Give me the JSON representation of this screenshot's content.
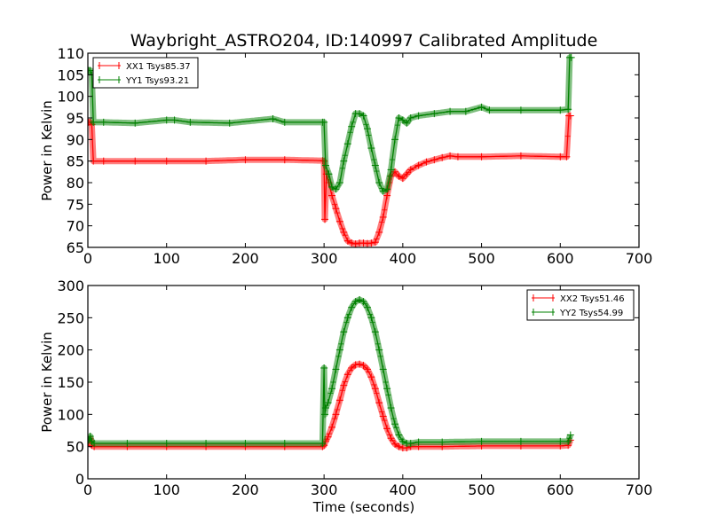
{
  "chart_data": [
    {
      "type": "line",
      "title": "Waybright_ASTRO204, ID:140997 Calibrated Amplitude",
      "xlabel": "",
      "ylabel": "Power in Kelvin",
      "xlim": [
        0,
        700
      ],
      "ylim": [
        65,
        110
      ],
      "xticks": [
        "0",
        "100",
        "200",
        "300",
        "400",
        "500",
        "600",
        "700"
      ],
      "yticks": [
        "65",
        "70",
        "75",
        "80",
        "85",
        "90",
        "95",
        "100",
        "105",
        "110"
      ],
      "grid": false,
      "legend_position": "top-left",
      "series": [
        {
          "name": "XX1 Tsys85.37",
          "color": "#ff0000",
          "x": [
            1,
            3,
            5,
            7,
            20,
            60,
            100,
            150,
            200,
            250,
            298,
            300,
            301,
            303,
            306,
            310,
            315,
            320,
            325,
            330,
            335,
            340,
            345,
            350,
            355,
            360,
            365,
            370,
            375,
            380,
            385,
            390,
            395,
            400,
            405,
            410,
            420,
            430,
            440,
            450,
            460,
            470,
            500,
            550,
            600,
            608,
            611,
            613
          ],
          "values": [
            94,
            94,
            93.5,
            85,
            85,
            85,
            85,
            85,
            85.3,
            85.3,
            85.1,
            85,
            71.5,
            82,
            80,
            77,
            74,
            71,
            68.5,
            66.5,
            66,
            65.8,
            66,
            66,
            65.9,
            66,
            66.2,
            68.5,
            72,
            77,
            81.5,
            82.5,
            81.5,
            81,
            82,
            83,
            84,
            84.8,
            85.3,
            85.8,
            86.2,
            86,
            86,
            86.2,
            86,
            86,
            95.5,
            95.5
          ]
        },
        {
          "name": "YY1 Tsys93.21",
          "color": "#008000",
          "x": [
            1,
            3,
            5,
            7,
            20,
            60,
            100,
            110,
            130,
            180,
            235,
            250,
            298,
            300,
            302,
            306,
            310,
            315,
            320,
            325,
            330,
            335,
            340,
            345,
            350,
            355,
            360,
            365,
            370,
            375,
            380,
            385,
            390,
            395,
            400,
            405,
            410,
            420,
            440,
            460,
            480,
            500,
            510,
            550,
            600,
            610,
            612,
            614
          ],
          "values": [
            106,
            106,
            105,
            94,
            94,
            93.8,
            94.5,
            94.5,
            94,
            93.8,
            94.8,
            94,
            94,
            94,
            84,
            82,
            79,
            78.5,
            80,
            85,
            89,
            93,
            96,
            96,
            95.5,
            92.5,
            88,
            84,
            80,
            78,
            78.5,
            83,
            90,
            95,
            94.5,
            93.8,
            95,
            95.5,
            96,
            96.5,
            96.5,
            97.5,
            96.8,
            96.8,
            96.8,
            97,
            109,
            109
          ]
        }
      ]
    },
    {
      "type": "line",
      "title": "",
      "xlabel": "Time (seconds)",
      "ylabel": "Power in Kelvin",
      "xlim": [
        0,
        700
      ],
      "ylim": [
        0,
        300
      ],
      "xticks": [
        "0",
        "100",
        "200",
        "300",
        "400",
        "500",
        "600",
        "700"
      ],
      "yticks": [
        "0",
        "50",
        "100",
        "150",
        "200",
        "250",
        "300"
      ],
      "grid": false,
      "legend_position": "top-right",
      "series": [
        {
          "name": "XX2 Tsys51.46",
          "color": "#ff0000",
          "x": [
            1,
            3,
            5,
            8,
            50,
            100,
            150,
            200,
            250,
            298,
            300,
            302,
            305,
            310,
            315,
            320,
            325,
            330,
            335,
            340,
            345,
            350,
            355,
            360,
            365,
            370,
            375,
            380,
            385,
            390,
            395,
            400,
            405,
            410,
            420,
            450,
            500,
            550,
            600,
            610,
            613
          ],
          "values": [
            55,
            62,
            52,
            50,
            50,
            50,
            50,
            50,
            50,
            50,
            52,
            58,
            65,
            80,
            100,
            122,
            145,
            162,
            172,
            177,
            178,
            176,
            170,
            158,
            140,
            118,
            97,
            78,
            63,
            54,
            50,
            48,
            48,
            50,
            50,
            50,
            51,
            51,
            51,
            52,
            60
          ]
        },
        {
          "name": "YY2 Tsys54.99",
          "color": "#008000",
          "x": [
            1,
            3,
            5,
            8,
            50,
            100,
            150,
            200,
            250,
            298,
            300,
            301,
            302,
            305,
            310,
            315,
            320,
            325,
            330,
            335,
            340,
            345,
            350,
            355,
            360,
            365,
            370,
            375,
            380,
            385,
            390,
            395,
            400,
            405,
            410,
            420,
            450,
            500,
            550,
            600,
            610,
            613
          ],
          "values": [
            60,
            66,
            58,
            55,
            55,
            55,
            55,
            55,
            55,
            55,
            172,
            100,
            110,
            118,
            140,
            170,
            200,
            228,
            250,
            266,
            275,
            278,
            275,
            266,
            250,
            228,
            200,
            170,
            140,
            110,
            85,
            68,
            58,
            55,
            55,
            57,
            57,
            58,
            58,
            58,
            58,
            68
          ]
        }
      ]
    }
  ]
}
